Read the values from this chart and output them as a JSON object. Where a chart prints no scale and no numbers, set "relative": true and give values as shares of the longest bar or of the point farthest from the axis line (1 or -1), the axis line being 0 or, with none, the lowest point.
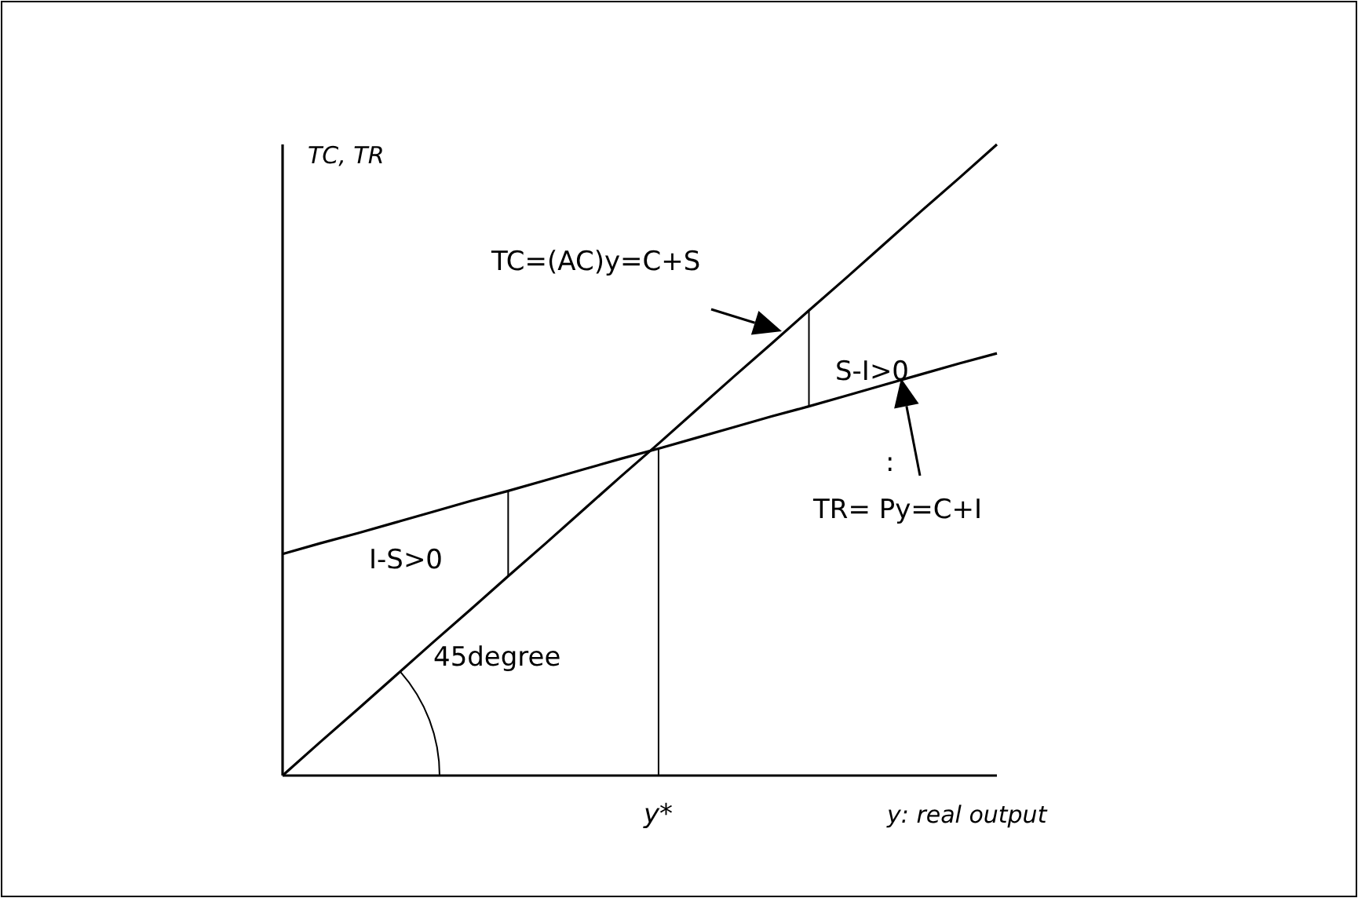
{
  "chart_data": {
    "type": "line",
    "relative": true,
    "xlabel": "y: real output",
    "ylabel": "TC, TR",
    "marker": "none",
    "line_style": "solid",
    "categories": [
      null,
      null,
      null,
      null,
      null,
      null,
      null,
      null,
      null,
      null,
      null,
      null,
      null,
      null,
      null,
      null,
      null,
      null,
      null,
      null
    ],
    "series": [
      {
        "color": "#000000",
        "values": [
          0,
          0.053,
          0.105,
          0.158,
          0.211,
          0.263,
          0.316,
          0.368,
          0.421,
          0.474,
          0.526,
          0.579,
          0.632,
          0.684,
          0.737,
          0.789,
          0.842,
          0.895,
          0.947,
          1
        ]
      },
      {
        "color": "#000000",
        "values": [
          0.351,
          0.368,
          0.384,
          0.401,
          0.418,
          0.435,
          0.451,
          0.468,
          0.485,
          0.502,
          0.518,
          0.535,
          0.552,
          0.569,
          0.585,
          0.602,
          0.619,
          0.636,
          0.653,
          0.669
        ]
      }
    ],
    "annotations": [
      "TC=(AC)y=C+S",
      "S-I>0",
      ":",
      "TR= Py=C+I",
      "I-S>0",
      "45degree",
      "y*"
    ]
  }
}
